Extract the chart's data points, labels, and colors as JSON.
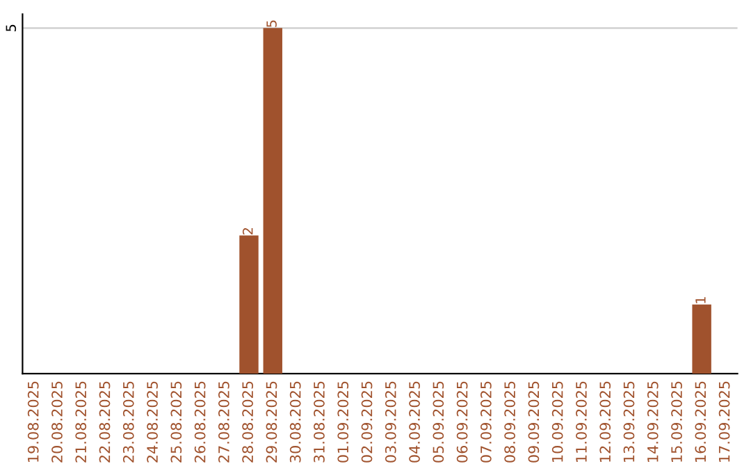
{
  "chart_data": {
    "type": "bar",
    "categories": [
      "19.08.2025",
      "20.08.2025",
      "21.08.2025",
      "22.08.2025",
      "23.08.2025",
      "24.08.2025",
      "25.08.2025",
      "26.08.2025",
      "27.08.2025",
      "28.08.2025",
      "29.08.2025",
      "30.08.2025",
      "31.08.2025",
      "01.09.2025",
      "02.09.2025",
      "03.09.2025",
      "04.09.2025",
      "05.09.2025",
      "06.09.2025",
      "07.09.2025",
      "08.09.2025",
      "09.09.2025",
      "10.09.2025",
      "11.09.2025",
      "12.09.2025",
      "13.09.2025",
      "14.09.2025",
      "15.09.2025",
      "16.09.2025",
      "17.09.2025"
    ],
    "values": [
      0,
      0,
      0,
      0,
      0,
      0,
      0,
      0,
      0,
      2,
      5,
      0,
      0,
      0,
      0,
      0,
      0,
      0,
      0,
      0,
      0,
      0,
      0,
      0,
      0,
      0,
      0,
      0,
      1,
      0
    ],
    "value_labels": [
      null,
      null,
      null,
      null,
      null,
      null,
      null,
      null,
      null,
      "2",
      "5",
      null,
      null,
      null,
      null,
      null,
      null,
      null,
      null,
      null,
      null,
      null,
      null,
      null,
      null,
      null,
      null,
      null,
      "1",
      null
    ],
    "color": "#a0522d",
    "ylim": [
      0,
      5.2
    ],
    "yticks": [
      5
    ],
    "grid": "y"
  }
}
